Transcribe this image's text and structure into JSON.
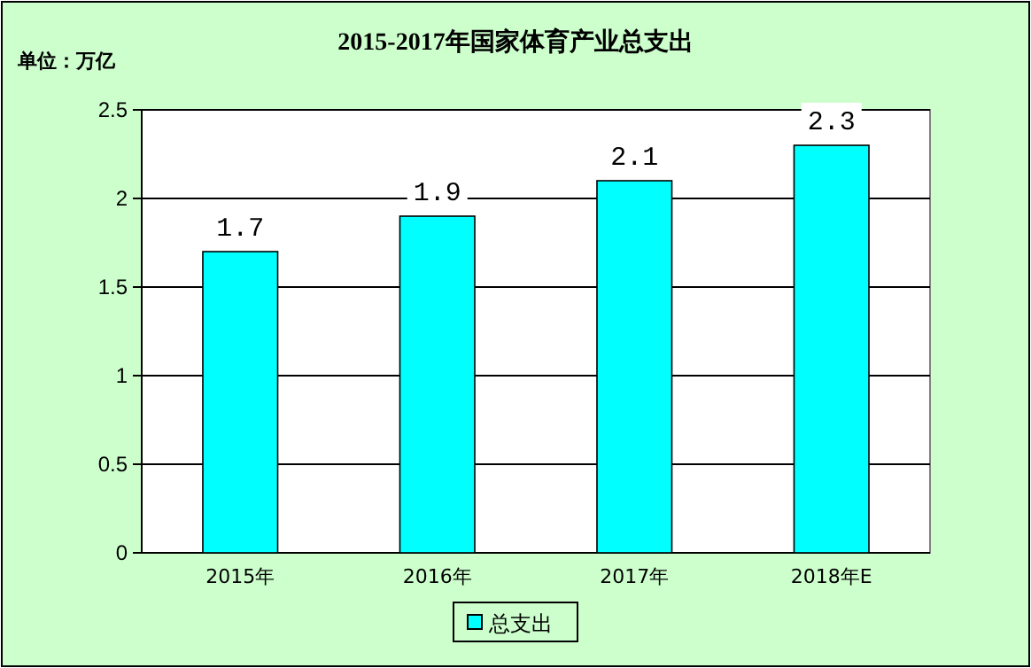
{
  "chart_data": {
    "type": "bar",
    "title": "2015-2017年国家体育产业总支出",
    "ylabel": "单位：万亿",
    "categories": [
      "2015年",
      "2016年",
      "2017年",
      "2018年E"
    ],
    "series": [
      {
        "name": "总支出",
        "color": "#00ffff",
        "values": [
          1.7,
          1.9,
          2.1,
          2.3
        ]
      }
    ],
    "ylim": [
      0,
      2.5
    ],
    "yticks": [
      0,
      0.5,
      1,
      1.5,
      2,
      2.5
    ],
    "grid": "y",
    "legend": "bottom",
    "data_labels": true
  }
}
